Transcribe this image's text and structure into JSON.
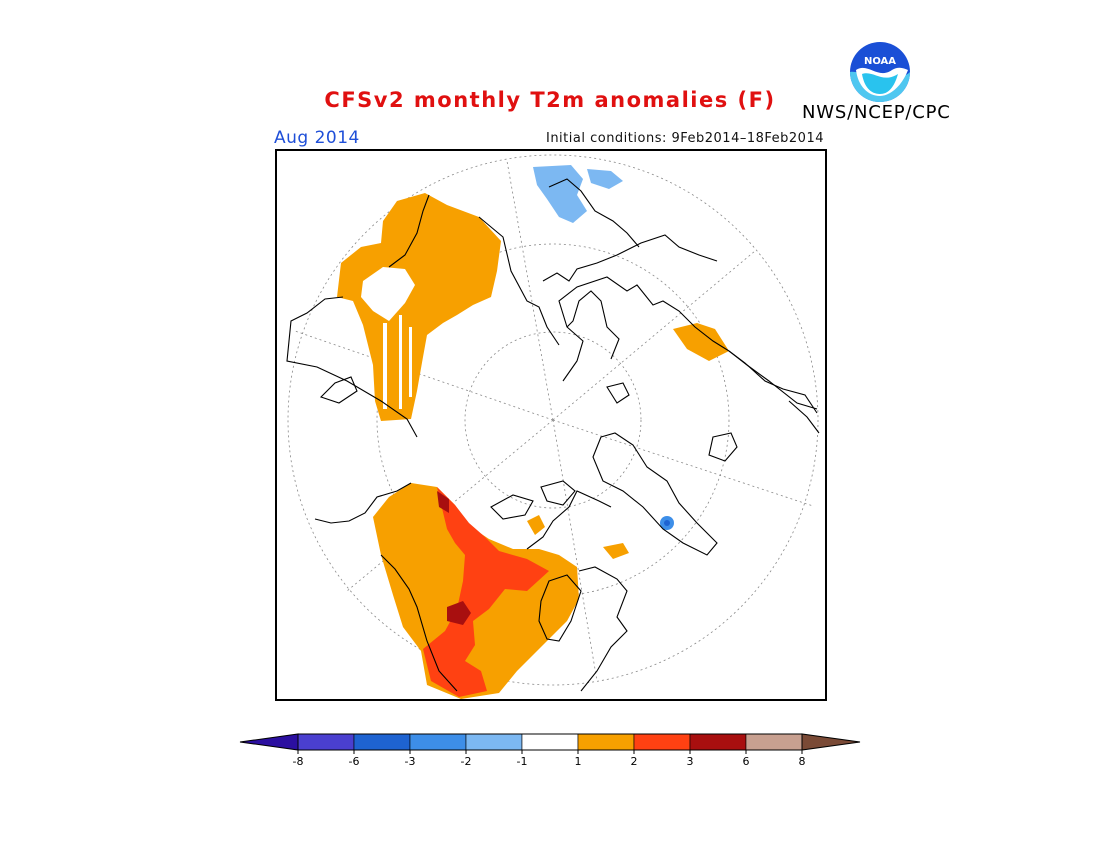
{
  "header": {
    "title": "CFSv2 monthly T2m anomalies (F)",
    "valid_month": "Aug 2014",
    "initial_conditions": "Initial conditions: 9Feb2014–18Feb2014",
    "organization": "NWS/NCEP/CPC",
    "logo_text": "NOAA"
  },
  "colors": {
    "title": "#e01010",
    "valid_month": "#1f4fd8"
  },
  "map": {
    "projection": "north-polar-stereographic",
    "variable": "2m temperature anomaly",
    "units": "F",
    "regions": [
      {
        "area": "Siberia",
        "anomaly": "1 to 2",
        "color": "#f7a000"
      },
      {
        "area": "Western North America",
        "anomaly": "2 to 3",
        "color": "#ff4112"
      },
      {
        "area": "Alaska / Western Canada",
        "anomaly": "1 to 2",
        "color": "#f7a000"
      },
      {
        "area": "Northern Africa",
        "anomaly": "-2 to -1",
        "color": "#7cb8f2"
      }
    ]
  },
  "legend": {
    "bins": [
      {
        "color": "#2b0fa0"
      },
      {
        "color": "#4a3fcf"
      },
      {
        "color": "#1e63d1"
      },
      {
        "color": "#3d8ee8"
      },
      {
        "color": "#7cb8f2"
      },
      {
        "color": "#ffffff"
      },
      {
        "color": "#f7a000"
      },
      {
        "color": "#ff4112"
      },
      {
        "color": "#a80f0f"
      },
      {
        "color": "#c8a090"
      },
      {
        "color": "#7a4a36"
      }
    ],
    "ticks": [
      "-8",
      "-6",
      "-3",
      "-2",
      "-1",
      "1",
      "2",
      "3",
      "6",
      "8"
    ]
  }
}
